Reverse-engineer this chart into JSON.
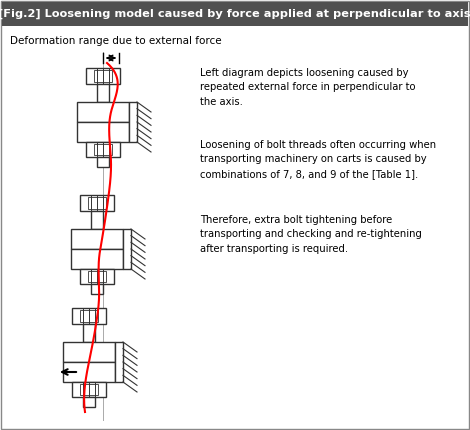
{
  "title": "[Fig.2] Loosening model caused by force applied at perpendicular to axis.",
  "subtitle": "Deformation range due to external force",
  "text1": "Left diagram depicts loosening caused by\nrepeated external force in perpendicular to\nthe axis.",
  "text2": "Loosening of bolt threads often occurring when\ntransporting machinery on carts is caused by\ncombinations of 7, 8, and 9 of the [Table 1].",
  "text3": "Therefore, extra bolt tightening before\ntransporting and checking and re-tightening\nafter transporting is required.",
  "title_bg": "#505050",
  "title_fg": "#ffffff",
  "body_bg": "#ffffff",
  "bolt_color": "#333333",
  "red_line": "#ff0000",
  "border_color": "#888888"
}
